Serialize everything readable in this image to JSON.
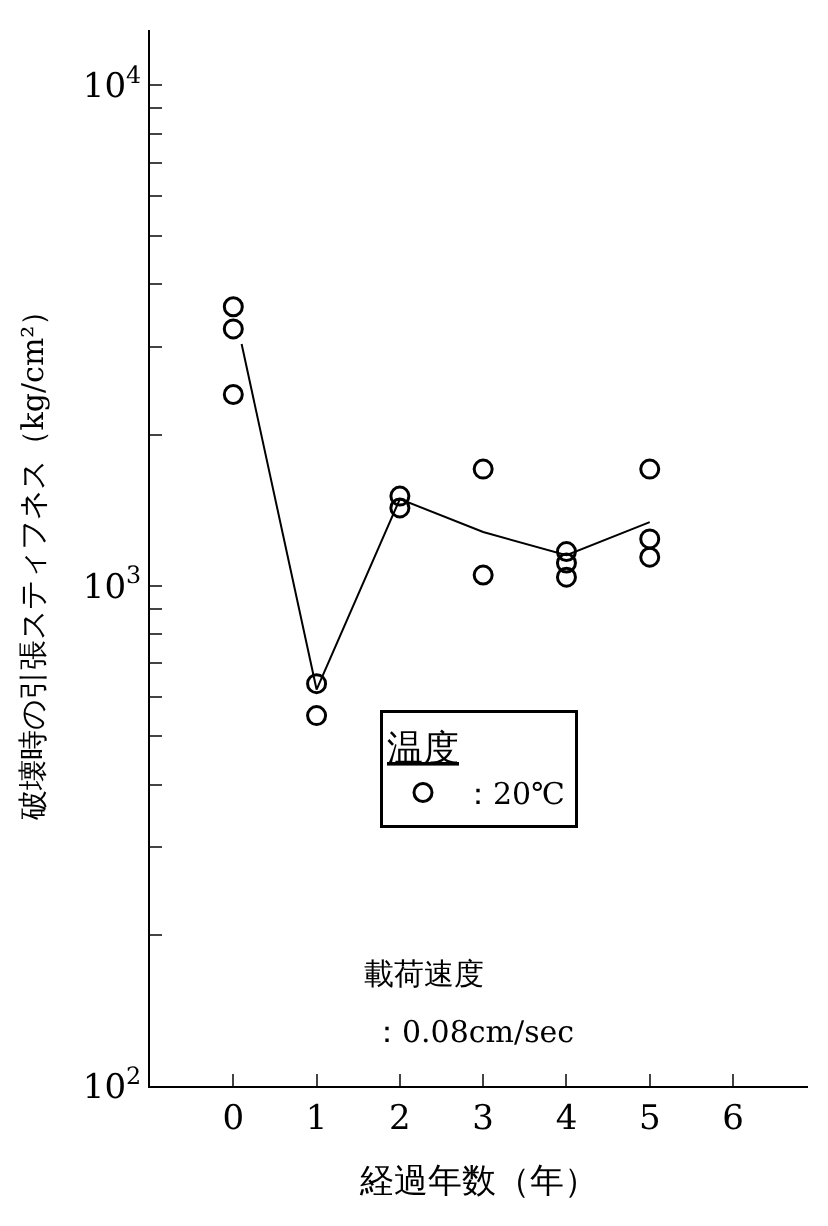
{
  "chart_data": {
    "type": "scatter",
    "xlabel": "経過年数（年）",
    "ylabel": "破壊時の引張スティフネス（kg/cm²）",
    "legend_title": "温度",
    "legend": "center",
    "log": "y",
    "xlim": [
      -1,
      6.9
    ],
    "xticks": [
      0,
      1,
      2,
      3,
      4,
      5,
      6
    ],
    "ylim": [
      100,
      12900
    ],
    "yticks": [
      {
        "value": 100,
        "label": "10$^{2}$"
      },
      {
        "value": 200,
        "label": null
      },
      {
        "value": 300,
        "label": null
      },
      {
        "value": 400,
        "label": null
      },
      {
        "value": 500,
        "label": null
      },
      {
        "value": 600,
        "label": null
      },
      {
        "value": 700,
        "label": null
      },
      {
        "value": 800,
        "label": null
      },
      {
        "value": 900,
        "label": null
      },
      {
        "value": 1000,
        "label": "10$^{3}$"
      },
      {
        "value": 2000,
        "label": null
      },
      {
        "value": 3000,
        "label": null
      },
      {
        "value": 4000,
        "label": null
      },
      {
        "value": 5000,
        "label": null
      },
      {
        "value": 6000,
        "label": null
      },
      {
        "value": 7000,
        "label": null
      },
      {
        "value": 8000,
        "label": null
      },
      {
        "value": 9000,
        "label": null
      },
      {
        "value": 10000,
        "label": "10$^{4}$"
      }
    ],
    "series": [
      {
        "name": "：20℃",
        "marker": "circle",
        "color": "#000000",
        "x": [
          0,
          0,
          0,
          1,
          1,
          2,
          2,
          3,
          3,
          4,
          4,
          4,
          5,
          5,
          5
        ],
        "values": [
          3610,
          3260,
          2410,
          637,
          550,
          1510,
          1430,
          1710,
          1050,
          1170,
          1110,
          1040,
          1710,
          1240,
          1140
        ]
      },
      {
        "type": "line",
        "color": "#000000",
        "x": [
          0.1,
          1,
          2,
          3,
          4,
          5
        ],
        "values": [
          3040,
          620,
          1490,
          1280,
          1150,
          1340
        ]
      }
    ],
    "annotations": [
      "載荷速度",
      "：0.08cm/sec"
    ]
  }
}
